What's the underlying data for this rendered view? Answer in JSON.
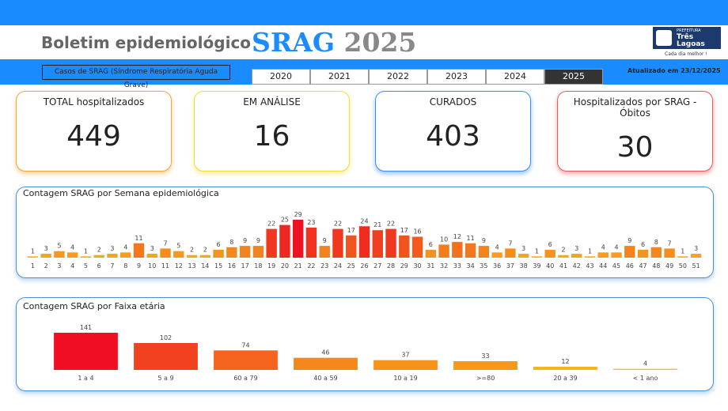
{
  "header": {
    "title": "Boletim epidemiológico",
    "title_main": "SRAG",
    "title_year": "2025",
    "logo": {
      "line1": "PREFEITURA",
      "line2": "Três Lagoas",
      "slogan": "Cada dia melhor !"
    }
  },
  "filter": {
    "label": "Casos de SRAG (Síndrome Respiratória Aguda Grave)",
    "years": [
      "2020",
      "2021",
      "2022",
      "2023",
      "2024",
      "2025"
    ],
    "selected": 5
  },
  "updated": "Atualizado em 23/12/2025",
  "kpis": [
    {
      "label": "TOTAL hospitalizados",
      "value": 449,
      "color": "#f5a53a"
    },
    {
      "label": "EM ANÁLISE",
      "value": 16,
      "color": "#f2dc3a"
    },
    {
      "label": "CURADOS",
      "value": 403,
      "color": "#3a8ff2"
    },
    {
      "label": "Hospitalizados por SRAG - Óbitos",
      "value": 30,
      "color": "#ee5a5a"
    }
  ],
  "chart_data": [
    {
      "type": "bar",
      "title": "Contagem SRAG por Semana epidemiológica",
      "categories": [
        "1",
        "2",
        "3",
        "4",
        "5",
        "6",
        "7",
        "8",
        "9",
        "10",
        "11",
        "12",
        "13",
        "14",
        "15",
        "16",
        "17",
        "18",
        "19",
        "20",
        "21",
        "22",
        "23",
        "24",
        "25",
        "26",
        "27",
        "28",
        "29",
        "30",
        "31",
        "32",
        "33",
        "34",
        "35",
        "36",
        "37",
        "38",
        "39",
        "40",
        "41",
        "42",
        "43",
        "44",
        "45",
        "46",
        "47",
        "48",
        "49",
        "50",
        "51"
      ],
      "values": [
        1,
        3,
        5,
        4,
        1,
        2,
        3,
        4,
        11,
        3,
        7,
        5,
        2,
        2,
        6,
        8,
        9,
        9,
        22,
        25,
        29,
        23,
        9,
        22,
        17,
        24,
        21,
        22,
        17,
        16,
        6,
        10,
        12,
        11,
        9,
        4,
        7,
        3,
        1,
        6,
        2,
        3,
        1,
        4,
        4,
        9,
        6,
        8,
        7,
        1,
        3
      ],
      "color_scale": [
        "#f7b51a",
        "#ee1023"
      ]
    },
    {
      "type": "bar",
      "title": "Contagem SRAG por Faixa etária",
      "categories": [
        "1 a 4",
        "5 a 9",
        "60 a 79",
        "40 a 59",
        "10 a 19",
        ">=80",
        "20 a 39",
        "< 1 ano"
      ],
      "values": [
        141,
        102,
        74,
        46,
        37,
        33,
        12,
        4
      ],
      "color_scale": [
        "#f8c21a",
        "#f00f22"
      ]
    }
  ]
}
